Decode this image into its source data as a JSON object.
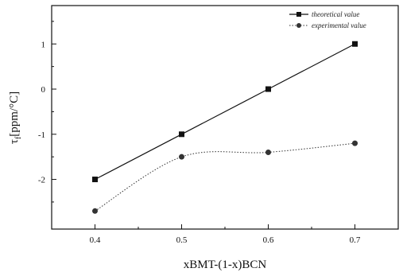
{
  "chart_data": {
    "type": "line",
    "title": "",
    "xlabel": "xBMT-(1-x)BCN",
    "ylabel_main": "τ",
    "ylabel_sub": "f",
    "ylabel_rest": "[ppm/°C]",
    "xlim": [
      0.35,
      0.75
    ],
    "ylim": [
      -3.1,
      1.85
    ],
    "x_ticks": [
      0.4,
      0.5,
      0.6,
      0.7
    ],
    "x_tick_labels": [
      "0.4",
      "0.5",
      "0.6",
      "0.7"
    ],
    "y_ticks": [
      -2,
      -1,
      0,
      1
    ],
    "y_tick_labels": [
      "-2",
      "-1",
      "0",
      "1"
    ],
    "legend_position": "top-right",
    "grid": false,
    "series": [
      {
        "name": "theoretical value",
        "marker": "square",
        "line_style": "solid",
        "color": "#111111",
        "x": [
          0.4,
          0.5,
          0.6,
          0.7
        ],
        "values": [
          -2,
          -1,
          0,
          1
        ]
      },
      {
        "name": "experimental value",
        "marker": "circle",
        "line_style": "dotted",
        "color": "#333333",
        "x": [
          0.4,
          0.5,
          0.6,
          0.7
        ],
        "values": [
          -2.7,
          -1.5,
          -1.4,
          -1.2
        ]
      }
    ]
  }
}
